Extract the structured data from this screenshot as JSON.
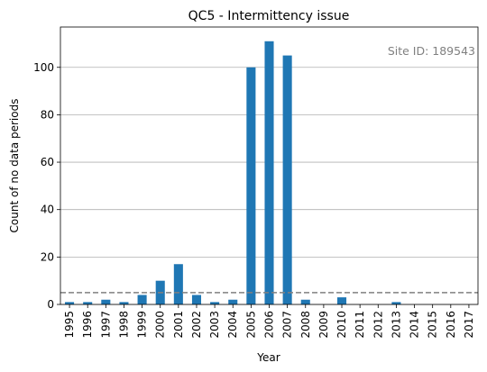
{
  "chart_data": {
    "type": "bar",
    "title": "QC5 - Intermittency issue",
    "xlabel": "Year",
    "ylabel": "Count of no data periods",
    "categories": [
      "1995",
      "1996",
      "1997",
      "1998",
      "1999",
      "2000",
      "2001",
      "2002",
      "2003",
      "2004",
      "2005",
      "2006",
      "2007",
      "2008",
      "2009",
      "2010",
      "2011",
      "2012",
      "2013",
      "2014",
      "2015",
      "2016",
      "2017"
    ],
    "values": [
      1,
      1,
      2,
      1,
      4,
      10,
      17,
      4,
      1,
      2,
      100,
      111,
      105,
      2,
      0,
      3,
      0,
      0,
      1,
      0,
      0,
      0,
      0
    ],
    "ylim": [
      0,
      117
    ],
    "yticks": [
      0,
      20,
      40,
      60,
      80,
      100
    ],
    "threshold": 5,
    "grid": "y",
    "annotation": "Site ID: 189543",
    "colors": {
      "bar": "#1f77b4",
      "grid": "#b0b0b0",
      "threshold": "#808080",
      "annotation": "#808080"
    }
  }
}
